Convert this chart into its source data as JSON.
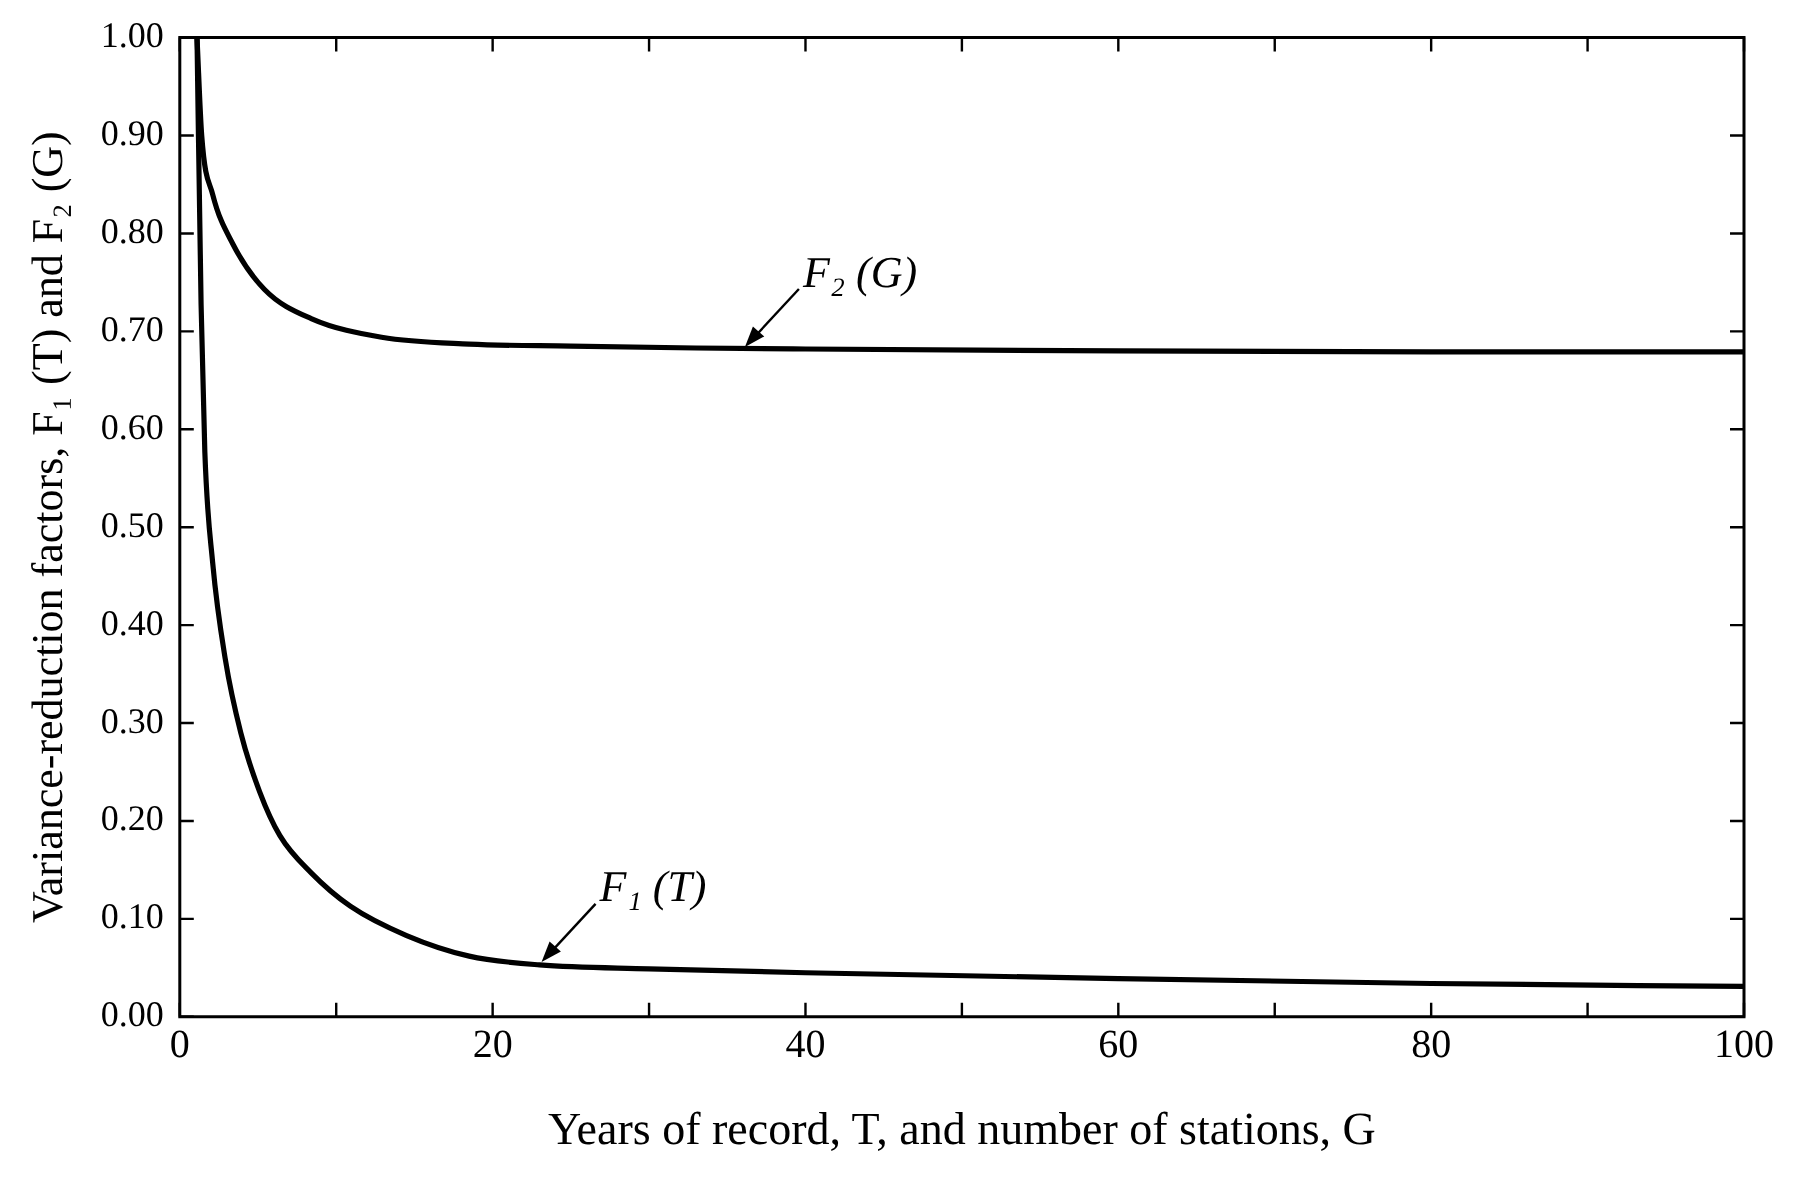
{
  "chart_data": {
    "type": "line",
    "xlabel": "Years of record, T, and number of stations, G",
    "ylabel": "Variance-reduction factors, F₁ (T) and F₂ (G)",
    "series": [
      {
        "color": "#000000",
        "x": [
          1.1,
          1.4,
          2.1,
          3.4,
          5.4,
          8.4,
          12.9,
          18.5,
          25,
          33,
          40,
          60,
          80,
          100
        ],
        "values": [
          1.0,
          0.9,
          0.84,
          0.789,
          0.743,
          0.713,
          0.694,
          0.687,
          0.685,
          0.683,
          0.682,
          0.68,
          0.679,
          0.679
        ]
      },
      {
        "color": "#000000",
        "x": [
          1.1,
          1.36,
          1.6,
          2.1,
          2.9,
          3.9,
          5.1,
          6.4,
          8.4,
          10.9,
          14.5,
          18.5,
          23,
          30,
          40,
          60,
          80,
          100
        ],
        "values": [
          1.0,
          0.728,
          0.577,
          0.464,
          0.366,
          0.29,
          0.23,
          0.185,
          0.147,
          0.113,
          0.083,
          0.062,
          0.053,
          0.049,
          0.045,
          0.039,
          0.034,
          0.031
        ]
      }
    ],
    "annotations": [
      {
        "text": "F₂ (G)",
        "x": 36,
        "y": 0.682
      },
      {
        "text": "F₁ (T)",
        "x": 23,
        "y": 0.054
      }
    ],
    "xlim": [
      0,
      100
    ],
    "ylim": [
      0,
      1
    ],
    "xticks": [
      0,
      {
        "value": 10,
        "label": null
      },
      20,
      {
        "value": 30,
        "label": null
      },
      40,
      {
        "value": 50,
        "label": null
      },
      60,
      {
        "value": 70,
        "label": null
      },
      80,
      {
        "value": 90,
        "label": null
      },
      100
    ],
    "yticks": [
      {
        "value": 0,
        "label": "0.00"
      },
      {
        "value": 0.1,
        "label": "0.10"
      },
      {
        "value": 0.2,
        "label": "0.20"
      },
      {
        "value": 0.3,
        "label": "0.30"
      },
      {
        "value": 0.4,
        "label": "0.40"
      },
      {
        "value": 0.5,
        "label": "0.50"
      },
      {
        "value": 0.6,
        "label": "0.60"
      },
      {
        "value": 0.7,
        "label": "0.70"
      },
      {
        "value": 0.8,
        "label": "0.80"
      },
      {
        "value": 0.9,
        "label": "0.90"
      },
      {
        "value": 1,
        "label": "1.00"
      }
    ],
    "grid": false,
    "legend": false,
    "marker": "none",
    "line_style": "solid"
  }
}
